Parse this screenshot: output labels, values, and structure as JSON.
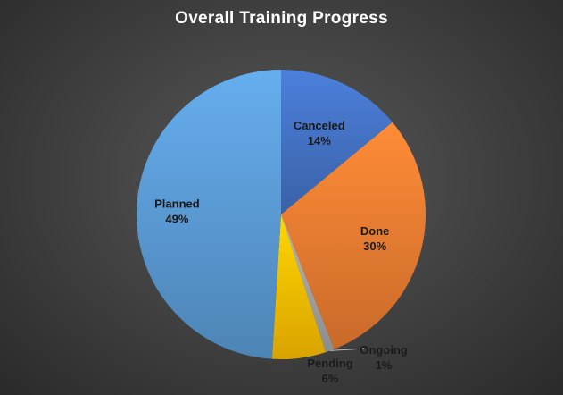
{
  "chart_data": {
    "type": "pie",
    "title": "Overall Training Progress",
    "slices": [
      {
        "name": "Canceled",
        "value": 14,
        "label": "14%",
        "color": "#4472C4"
      },
      {
        "name": "Done",
        "value": 30,
        "label": "30%",
        "color": "#ED7D31"
      },
      {
        "name": "Ongoing",
        "value": 1,
        "label": "1%",
        "color": "#A5A5A5"
      },
      {
        "name": "Pending",
        "value": 6,
        "label": "6%",
        "color": "#FFC000"
      },
      {
        "name": "Planned",
        "value": 49,
        "label": "49%",
        "color": "#5B9BD5"
      }
    ],
    "start_angle_deg": 0,
    "direction": "clockwise"
  }
}
